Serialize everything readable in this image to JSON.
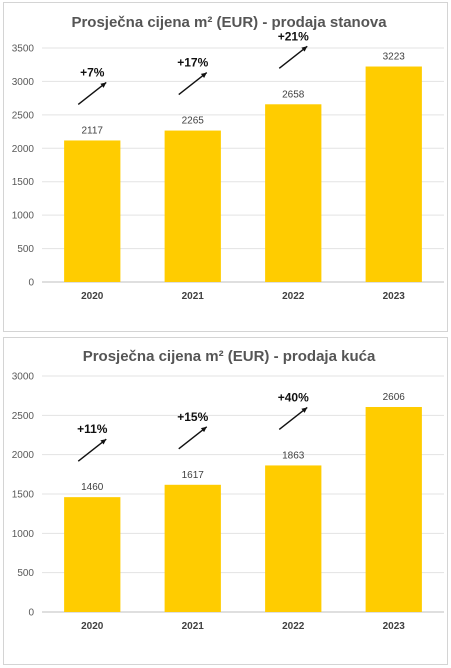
{
  "chart_data": [
    {
      "type": "bar",
      "title": "Prosječna cijena m² (EUR) - prodaja stanova",
      "categories": [
        "2020",
        "2021",
        "2022",
        "2023"
      ],
      "values": [
        2117,
        2265,
        2658,
        3223
      ],
      "ylim": [
        0,
        3500
      ],
      "yticks": [
        0,
        500,
        1000,
        1500,
        2000,
        2500,
        3000,
        3500
      ],
      "grid": true,
      "bar_color": "#FFCC00",
      "annotations": [
        {
          "label": "+7%",
          "after_category": "2020"
        },
        {
          "label": "+17%",
          "after_category": "2021"
        },
        {
          "label": "+21%",
          "after_category": "2022"
        }
      ]
    },
    {
      "type": "bar",
      "title": "Prosječna cijena m² (EUR) - prodaja kuća",
      "categories": [
        "2020",
        "2021",
        "2022",
        "2023"
      ],
      "values": [
        1460,
        1617,
        1863,
        2606
      ],
      "ylim": [
        0,
        3000
      ],
      "yticks": [
        0,
        500,
        1000,
        1500,
        2000,
        2500,
        3000
      ],
      "grid": true,
      "bar_color": "#FFCC00",
      "annotations": [
        {
          "label": "+11%",
          "after_category": "2020"
        },
        {
          "label": "+15%",
          "after_category": "2021"
        },
        {
          "label": "+40%",
          "after_category": "2022"
        }
      ]
    }
  ]
}
